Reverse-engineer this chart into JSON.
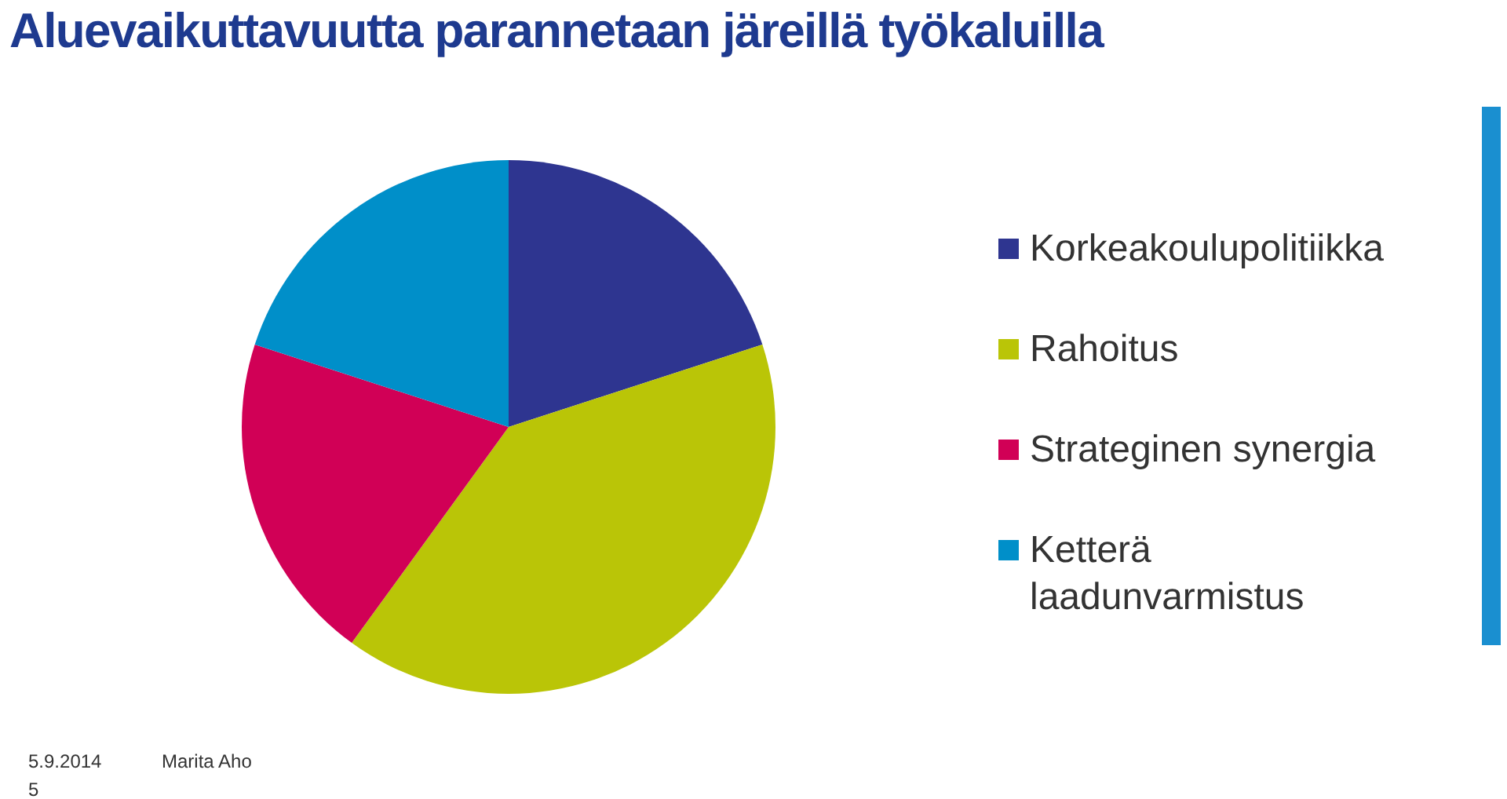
{
  "chart_data": {
    "type": "pie",
    "title": "Aluevaikuttavuutta parannetaan järeillä työkaluilla",
    "categories": [
      "Korkeakoulupolitiikka",
      "Rahoitus",
      "Strateginen synergia",
      "Ketterä laadunvarmistus"
    ],
    "values": [
      20,
      40,
      20,
      20
    ],
    "colors": [
      "#2e3590",
      "#bac507",
      "#d10056",
      "#008fc9"
    ],
    "legend": "right",
    "annotations": [
      "5.9.2014",
      "Marita Aho",
      "5"
    ]
  }
}
